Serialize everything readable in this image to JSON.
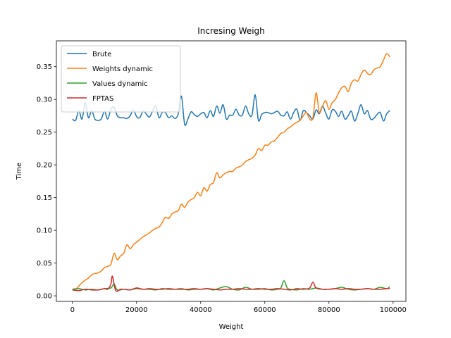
{
  "chart_data": {
    "type": "line",
    "title": "Incresing Weigh",
    "xlabel": "Weight",
    "ylabel": "Time",
    "xlim": [
      -5000,
      104000
    ],
    "ylim": [
      -0.0085,
      0.3895
    ],
    "xticks": [
      0,
      20000,
      40000,
      60000,
      80000,
      100000
    ],
    "xtick_labels": [
      "0",
      "20000",
      "40000",
      "60000",
      "80000",
      "100000"
    ],
    "yticks": [
      0.0,
      0.05,
      0.1,
      0.15,
      0.2,
      0.25,
      0.3,
      0.35
    ],
    "ytick_labels": [
      "0.00",
      "0.05",
      "0.10",
      "0.15",
      "0.20",
      "0.25",
      "0.30",
      "0.35"
    ],
    "legend_position": "top-left",
    "grid": false,
    "series": [
      {
        "name": "Brute",
        "color": "#1f77b4",
        "x": [
          0,
          1000,
          2000,
          3000,
          4000,
          5000,
          6000,
          7000,
          8000,
          9000,
          10000,
          11000,
          12000,
          13000,
          14000,
          15000,
          16000,
          17000,
          18000,
          19000,
          20000,
          21000,
          22000,
          23000,
          24000,
          25000,
          26000,
          27000,
          28000,
          29000,
          30000,
          31000,
          32000,
          33000,
          34000,
          35000,
          36000,
          37000,
          38000,
          39000,
          40000,
          41000,
          42000,
          43000,
          44000,
          45000,
          46000,
          47000,
          48000,
          49000,
          50000,
          51000,
          52000,
          53000,
          54000,
          55000,
          56000,
          57000,
          58000,
          59000,
          60000,
          61000,
          62000,
          63000,
          64000,
          65000,
          66000,
          67000,
          68000,
          69000,
          70000,
          71000,
          72000,
          73000,
          74000,
          75000,
          76000,
          77000,
          78000,
          79000,
          80000,
          81000,
          82000,
          83000,
          84000,
          85000,
          86000,
          87000,
          88000,
          89000,
          90000,
          91000,
          92000,
          93000,
          94000,
          95000,
          96000,
          97000,
          98000,
          99000
        ],
        "y": [
          0.27,
          0.268,
          0.283,
          0.27,
          0.295,
          0.272,
          0.283,
          0.27,
          0.268,
          0.27,
          0.282,
          0.27,
          0.285,
          0.288,
          0.275,
          0.272,
          0.272,
          0.271,
          0.275,
          0.284,
          0.274,
          0.272,
          0.282,
          0.278,
          0.273,
          0.282,
          0.29,
          0.272,
          0.28,
          0.28,
          0.272,
          0.275,
          0.271,
          0.278,
          0.305,
          0.262,
          0.27,
          0.281,
          0.277,
          0.274,
          0.278,
          0.28,
          0.272,
          0.283,
          0.274,
          0.29,
          0.279,
          0.292,
          0.27,
          0.276,
          0.276,
          0.285,
          0.276,
          0.276,
          0.29,
          0.278,
          0.276,
          0.307,
          0.268,
          0.277,
          0.28,
          0.28,
          0.278,
          0.28,
          0.282,
          0.276,
          0.275,
          0.281,
          0.27,
          0.28,
          0.285,
          0.268,
          0.283,
          0.28,
          0.275,
          0.27,
          0.284,
          0.278,
          0.29,
          0.279,
          0.27,
          0.284,
          0.282,
          0.274,
          0.282,
          0.27,
          0.275,
          0.282,
          0.267,
          0.278,
          0.292,
          0.278,
          0.283,
          0.27,
          0.271,
          0.277,
          0.28,
          0.267,
          0.278,
          0.283
        ]
      },
      {
        "name": "Weights dynamic",
        "color": "#ff7f0e",
        "x": [
          0,
          1000,
          2000,
          3000,
          4000,
          5000,
          6000,
          7000,
          8000,
          9000,
          10000,
          11000,
          12000,
          13000,
          14000,
          15000,
          16000,
          17000,
          18000,
          19000,
          20000,
          21000,
          22000,
          23000,
          24000,
          25000,
          26000,
          27000,
          28000,
          29000,
          30000,
          31000,
          32000,
          33000,
          34000,
          35000,
          36000,
          37000,
          38000,
          39000,
          40000,
          41000,
          42000,
          43000,
          44000,
          45000,
          46000,
          47000,
          48000,
          49000,
          50000,
          51000,
          52000,
          53000,
          54000,
          55000,
          56000,
          57000,
          58000,
          59000,
          60000,
          61000,
          62000,
          63000,
          64000,
          65000,
          66000,
          67000,
          68000,
          69000,
          70000,
          71000,
          72000,
          73000,
          74000,
          75000,
          76000,
          77000,
          78000,
          79000,
          80000,
          81000,
          82000,
          83000,
          84000,
          85000,
          86000,
          87000,
          88000,
          89000,
          90000,
          91000,
          92000,
          93000,
          94000,
          95000,
          96000,
          97000,
          98000,
          99000
        ],
        "y": [
          0.01,
          0.01,
          0.015,
          0.02,
          0.024,
          0.027,
          0.032,
          0.034,
          0.035,
          0.038,
          0.043,
          0.045,
          0.048,
          0.065,
          0.055,
          0.061,
          0.065,
          0.078,
          0.072,
          0.078,
          0.082,
          0.086,
          0.09,
          0.093,
          0.096,
          0.1,
          0.103,
          0.105,
          0.112,
          0.12,
          0.118,
          0.125,
          0.128,
          0.13,
          0.14,
          0.135,
          0.143,
          0.147,
          0.15,
          0.158,
          0.153,
          0.165,
          0.16,
          0.17,
          0.173,
          0.188,
          0.18,
          0.185,
          0.188,
          0.19,
          0.19,
          0.195,
          0.197,
          0.2,
          0.205,
          0.208,
          0.21,
          0.215,
          0.225,
          0.222,
          0.23,
          0.23,
          0.235,
          0.237,
          0.242,
          0.248,
          0.25,
          0.255,
          0.258,
          0.262,
          0.265,
          0.268,
          0.275,
          0.28,
          0.27,
          0.272,
          0.31,
          0.28,
          0.29,
          0.298,
          0.285,
          0.295,
          0.3,
          0.31,
          0.318,
          0.32,
          0.312,
          0.325,
          0.33,
          0.328,
          0.338,
          0.345,
          0.34,
          0.338,
          0.345,
          0.348,
          0.35,
          0.36,
          0.37,
          0.365
        ]
      },
      {
        "name": "Values dynamic",
        "color": "#2ca02c",
        "x": [
          0,
          2000,
          4000,
          6000,
          8000,
          10000,
          12000,
          13000,
          14000,
          16000,
          18000,
          20000,
          22000,
          24000,
          26000,
          28000,
          30000,
          32000,
          34000,
          36000,
          38000,
          40000,
          42000,
          44000,
          46000,
          48000,
          50000,
          52000,
          54000,
          56000,
          58000,
          60000,
          62000,
          64000,
          65000,
          66000,
          67000,
          68000,
          70000,
          72000,
          74000,
          76000,
          78000,
          80000,
          82000,
          84000,
          86000,
          88000,
          90000,
          92000,
          94000,
          96000,
          98000,
          99000
        ],
        "y": [
          0.01,
          0.011,
          0.009,
          0.01,
          0.009,
          0.011,
          0.012,
          0.018,
          0.009,
          0.01,
          0.009,
          0.011,
          0.01,
          0.01,
          0.009,
          0.011,
          0.01,
          0.01,
          0.011,
          0.009,
          0.01,
          0.01,
          0.011,
          0.009,
          0.012,
          0.014,
          0.01,
          0.009,
          0.013,
          0.01,
          0.01,
          0.011,
          0.009,
          0.01,
          0.012,
          0.023,
          0.012,
          0.01,
          0.009,
          0.011,
          0.01,
          0.012,
          0.01,
          0.01,
          0.011,
          0.013,
          0.01,
          0.009,
          0.01,
          0.011,
          0.01,
          0.013,
          0.011,
          0.014
        ]
      },
      {
        "name": "FPTAS",
        "color": "#d62728",
        "x": [
          0,
          2000,
          4000,
          6000,
          8000,
          10000,
          11000,
          12000,
          12500,
          13500,
          15000,
          16000,
          18000,
          20000,
          22000,
          24000,
          26000,
          28000,
          30000,
          32000,
          34000,
          36000,
          38000,
          40000,
          42000,
          44000,
          46000,
          48000,
          50000,
          52000,
          54000,
          56000,
          58000,
          60000,
          62000,
          64000,
          66000,
          68000,
          70000,
          72000,
          74000,
          75000,
          76000,
          78000,
          80000,
          82000,
          84000,
          86000,
          88000,
          90000,
          92000,
          94000,
          96000,
          98000,
          99000
        ],
        "y": [
          0.009,
          0.008,
          0.01,
          0.009,
          0.009,
          0.011,
          0.01,
          0.018,
          0.03,
          0.008,
          0.01,
          0.01,
          0.009,
          0.012,
          0.01,
          0.011,
          0.01,
          0.01,
          0.011,
          0.01,
          0.01,
          0.01,
          0.011,
          0.01,
          0.011,
          0.01,
          0.009,
          0.01,
          0.01,
          0.011,
          0.01,
          0.01,
          0.011,
          0.01,
          0.01,
          0.011,
          0.01,
          0.009,
          0.011,
          0.01,
          0.012,
          0.021,
          0.012,
          0.01,
          0.01,
          0.011,
          0.01,
          0.011,
          0.01,
          0.01,
          0.011,
          0.01,
          0.01,
          0.011,
          0.011
        ]
      }
    ]
  }
}
